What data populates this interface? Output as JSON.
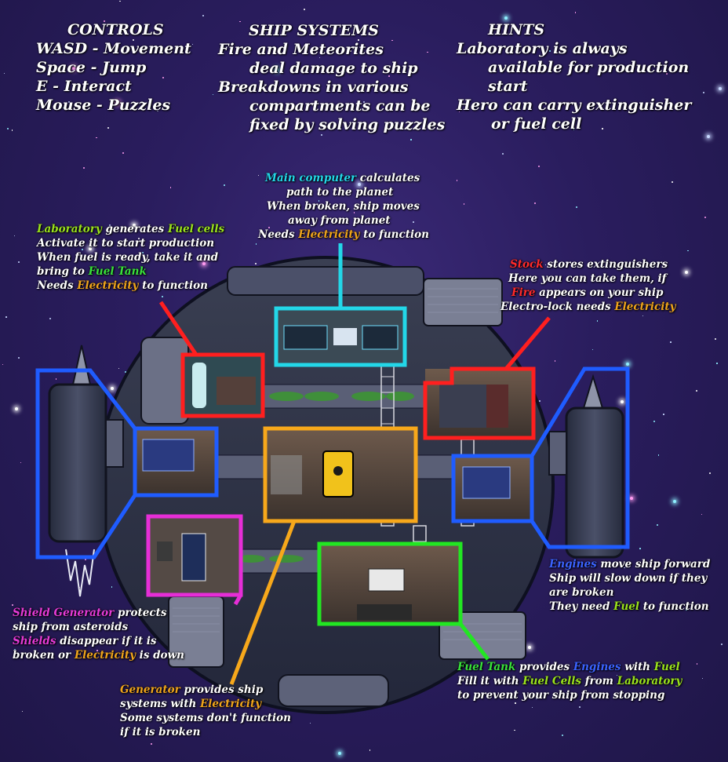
{
  "colors": {
    "main_computer": "#23d7e8",
    "laboratory": "#ff1f1f",
    "stock": "#ff1f1f",
    "engines": "#1f5cff",
    "generator": "#f7a81b",
    "fuel_tank": "#22e622",
    "shield_generator": "#e62ed7"
  },
  "controls": {
    "title": "CONTROLS",
    "lines": [
      "WASD  - Movement",
      "Space - Jump",
      "E - Interact",
      "Mouse - Puzzles"
    ]
  },
  "ship_systems": {
    "title": "SHIP SYSTEMS",
    "lines": [
      "Fire and Meteorites",
      "deal damage to ship",
      "Breakdowns in various",
      "compartments can be",
      "fixed by solving puzzles"
    ]
  },
  "hints": {
    "title": "HINTS",
    "lines": [
      "Laboratory is always",
      "available for production",
      "start",
      "Hero can carry extinguisher",
      "or fuel cell"
    ]
  },
  "main_computer": {
    "name": "Main computer",
    "line1_rest": " calculates",
    "line2": "path to the planet",
    "line3": "When broken, ship moves",
    "line4": "away from planet",
    "line5_pre": "Needs ",
    "electricity": "Electricity",
    "line5_post": " to function"
  },
  "laboratory": {
    "name": "Laboratory",
    "line1_mid": " generates ",
    "fuel_cells": "Fuel cells",
    "line2": "Activate it to start production",
    "line3": "When fuel is ready, take it and",
    "line4_pre": "bring to ",
    "fuel_tank": "Fuel Tank",
    "line5_pre": "Needs ",
    "electricity": "Electricity",
    "line5_post": " to function"
  },
  "stock": {
    "name": "Stock",
    "line1_rest": " stores extinguishers",
    "line2": "Here you can take them, if",
    "fire": "Fire",
    "line3_rest": " appears on your ship",
    "line4_pre": "Electro-lock needs ",
    "electricity": "Electricity"
  },
  "engines": {
    "name": "Engines",
    "line1_rest": " move ship forward",
    "line2": "Ship will slow down if they",
    "line3": "are broken",
    "line4_pre": "They need ",
    "fuel": "Fuel",
    "line4_post": " to function"
  },
  "shield_generator": {
    "name": "Shield Generator",
    "line1_rest": " protects",
    "line2": "ship from asteroids",
    "shields": "Shields",
    "line3_rest": " disappear if it is",
    "line4_pre": "broken or ",
    "electricity": "Electricity",
    "line4_post": " is down"
  },
  "generator": {
    "name": "Generator",
    "line1_rest": " provides ship",
    "line2_pre": "systems with ",
    "electricity": "Electricity",
    "line3": "Some systems don't function",
    "line4": "if it is broken"
  },
  "fuel_tank": {
    "name": "Fuel Tank",
    "line1_mid": " provides ",
    "engines": "Engines",
    "line1_mid2": " with ",
    "fuel": "Fuel",
    "line2_pre": "Fill it with ",
    "fuel_cells": "Fuel Cells",
    "line2_mid": " from ",
    "laboratory": "Laboratory",
    "line3": "to prevent your ship from stopping"
  }
}
